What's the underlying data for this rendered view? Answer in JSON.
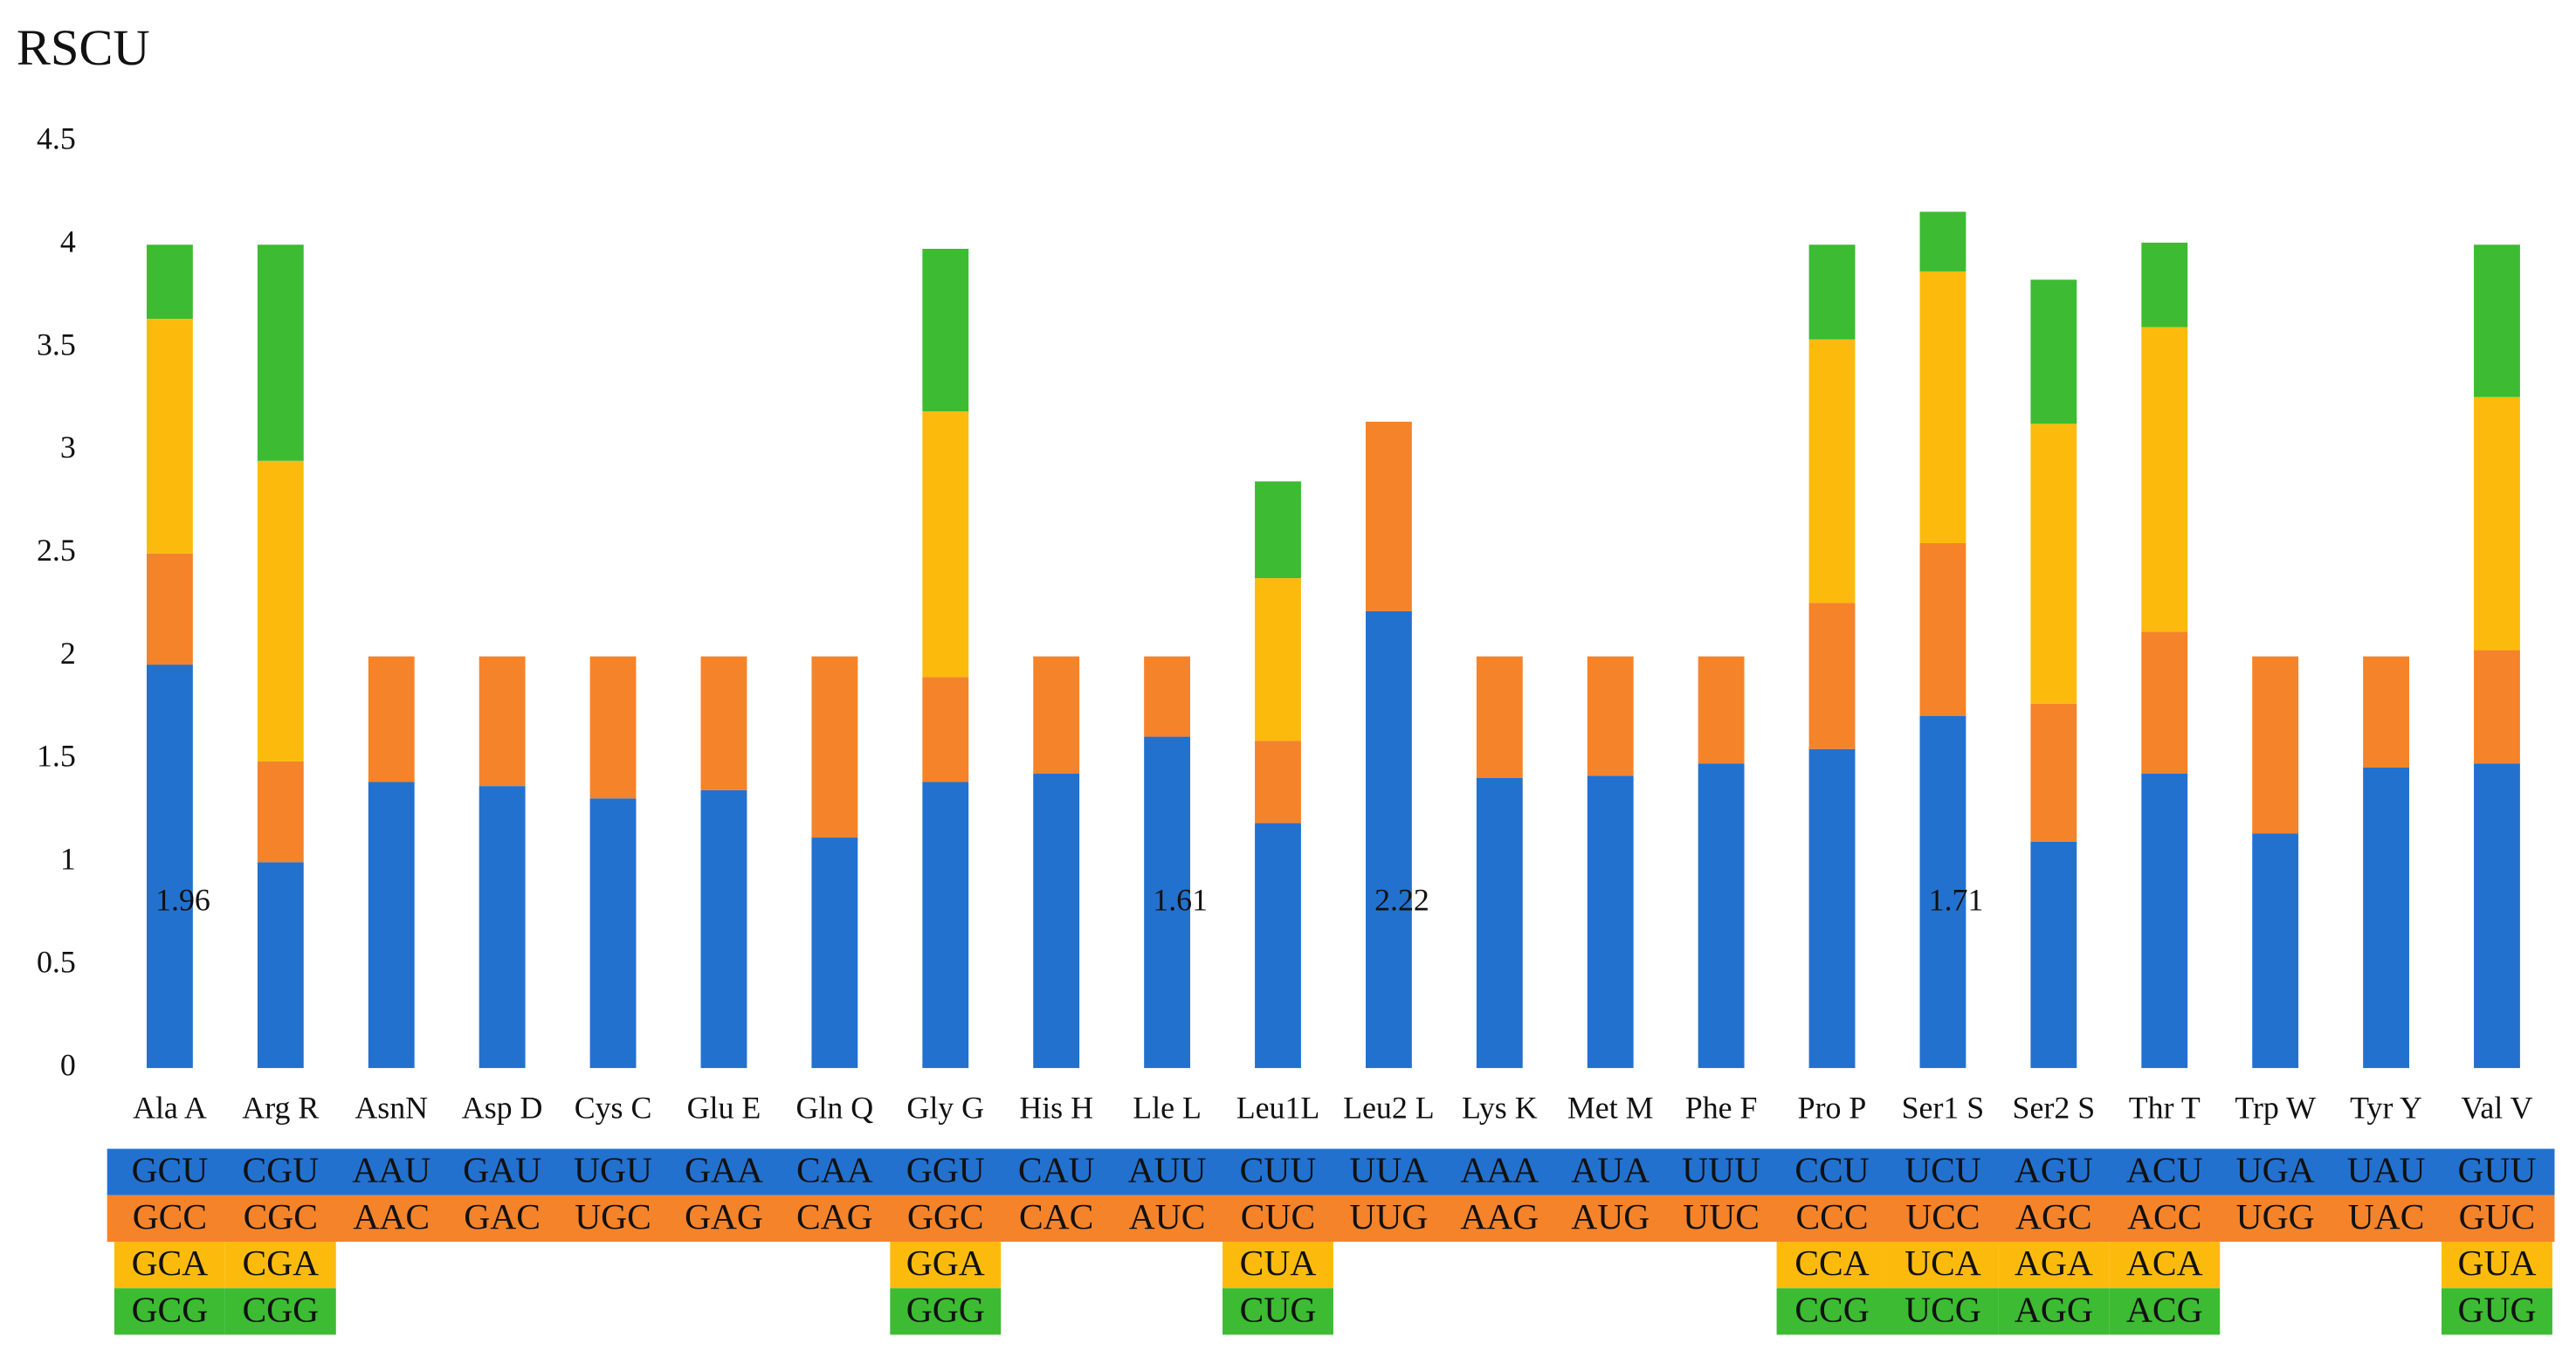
{
  "chart_data": {
    "type": "stacked_bar",
    "title": "RSCU",
    "categories": [
      "Ala A",
      "Arg R",
      "AsnN",
      "Asp D",
      "Cys C",
      "Glu E",
      "Gln Q",
      "Gly G",
      "His H",
      "Lle L",
      "Leu1L",
      "Leu2 L",
      "Lys K",
      "Met M",
      "Phe F",
      "Pro P",
      "Ser1 S",
      "Ser2 S",
      "Thr T",
      "Trp W",
      "Tyr Y",
      "Val V"
    ],
    "ylim": [
      0,
      4.5
    ],
    "yticks": [
      0,
      0.5,
      1,
      1.5,
      2,
      2.5,
      3,
      3.5,
      4,
      4.5
    ],
    "series": [
      {
        "color": "#2271cf",
        "values": [
          1.96,
          1.0,
          1.39,
          1.37,
          1.31,
          1.35,
          1.12,
          1.39,
          1.43,
          1.61,
          1.19,
          2.22,
          1.41,
          1.42,
          1.48,
          1.55,
          1.71,
          1.1,
          1.43,
          1.14,
          1.46,
          1.48
        ],
        "value_labels": [
          "1.96",
          null,
          null,
          null,
          null,
          null,
          null,
          null,
          null,
          "1.61",
          null,
          "2.22",
          null,
          null,
          null,
          null,
          "1.71",
          null,
          null,
          null,
          null,
          null
        ],
        "codons": [
          "GCU",
          "CGU",
          "AAU",
          "GAU",
          "UGU",
          "GAA",
          "CAA",
          "GGU",
          "CAU",
          "AUU",
          "CUU",
          "UUA",
          "AAA",
          "AUA",
          "UUU",
          "CCU",
          "UCU",
          "AGU",
          "ACU",
          "UGA",
          "UAU",
          "GUU"
        ]
      },
      {
        "color": "#f5832a",
        "values": [
          0.54,
          0.49,
          0.61,
          0.63,
          0.69,
          0.65,
          0.88,
          0.51,
          0.57,
          0.39,
          0.4,
          0.92,
          0.59,
          0.58,
          0.52,
          0.71,
          0.84,
          0.67,
          0.69,
          0.86,
          0.54,
          0.55
        ],
        "codons": [
          "GCC",
          "CGC",
          "AAC",
          "GAC",
          "UGC",
          "GAG",
          "CAG",
          "GGC",
          "CAC",
          "AUC",
          "CUC",
          "UUG",
          "AAG",
          "AUG",
          "UUC",
          "CCC",
          "UCC",
          "AGC",
          "ACC",
          "UGG",
          "UAC",
          "GUC"
        ]
      },
      {
        "color": "#fcbb0c",
        "values": [
          1.14,
          1.46,
          null,
          null,
          null,
          null,
          null,
          1.29,
          null,
          null,
          0.79,
          null,
          null,
          null,
          null,
          1.28,
          1.32,
          1.36,
          1.48,
          null,
          null,
          1.23
        ],
        "codons": [
          "GCA",
          "CGA",
          null,
          null,
          null,
          null,
          null,
          "GGA",
          null,
          null,
          "CUA",
          null,
          null,
          null,
          null,
          "CCA",
          "UCA",
          "AGA",
          "ACA",
          null,
          null,
          "GUA"
        ]
      },
      {
        "color": "#3cbb33",
        "values": [
          0.36,
          1.05,
          null,
          null,
          null,
          null,
          null,
          0.79,
          null,
          null,
          0.47,
          null,
          null,
          null,
          null,
          0.46,
          0.29,
          0.7,
          0.41,
          null,
          null,
          0.74
        ],
        "codons": [
          "GCG",
          "CGG",
          null,
          null,
          null,
          null,
          null,
          "GGG",
          null,
          null,
          "CUG",
          null,
          null,
          null,
          null,
          "CCG",
          "UCG",
          "AGG",
          "ACG",
          null,
          null,
          "GUG"
        ]
      }
    ]
  }
}
